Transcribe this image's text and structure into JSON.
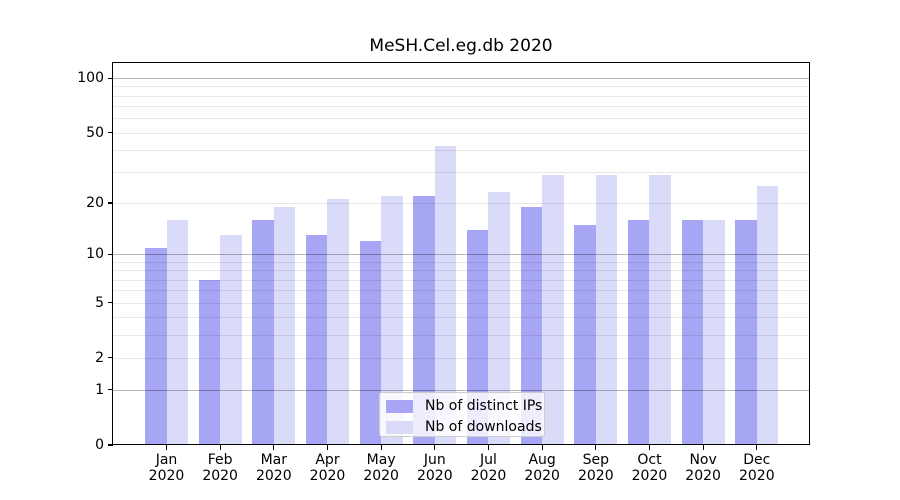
{
  "chart_data": {
    "type": "bar",
    "title": "MeSH.Cel.eg.db 2020",
    "categories": [
      "Jan",
      "Feb",
      "Mar",
      "Apr",
      "May",
      "Jun",
      "Jul",
      "Aug",
      "Sep",
      "Oct",
      "Nov",
      "Dec"
    ],
    "category_year": "2020",
    "series": [
      {
        "name": "Nb of distinct IPs",
        "color": "#a6a6f4",
        "values": [
          11,
          7,
          16,
          13,
          12,
          22,
          14,
          19,
          15,
          16,
          16,
          16
        ]
      },
      {
        "name": "Nb of downloads",
        "color": "#dadaf9",
        "values": [
          16,
          13,
          19,
          21,
          22,
          42,
          23,
          29,
          29,
          29,
          16,
          25
        ]
      }
    ],
    "xlabel": "",
    "ylabel": "",
    "yscale": "log1p",
    "ylim": [
      0,
      122
    ],
    "yticks": [
      0,
      1,
      2,
      5,
      10,
      20,
      50,
      100
    ],
    "grid_major": [
      1,
      10,
      100
    ],
    "grid_minor": [
      2,
      3,
      4,
      5,
      6,
      7,
      8,
      9,
      20,
      30,
      40,
      50,
      60,
      70,
      80,
      90
    ],
    "grid": "on",
    "legend_position": "bottom-center"
  }
}
